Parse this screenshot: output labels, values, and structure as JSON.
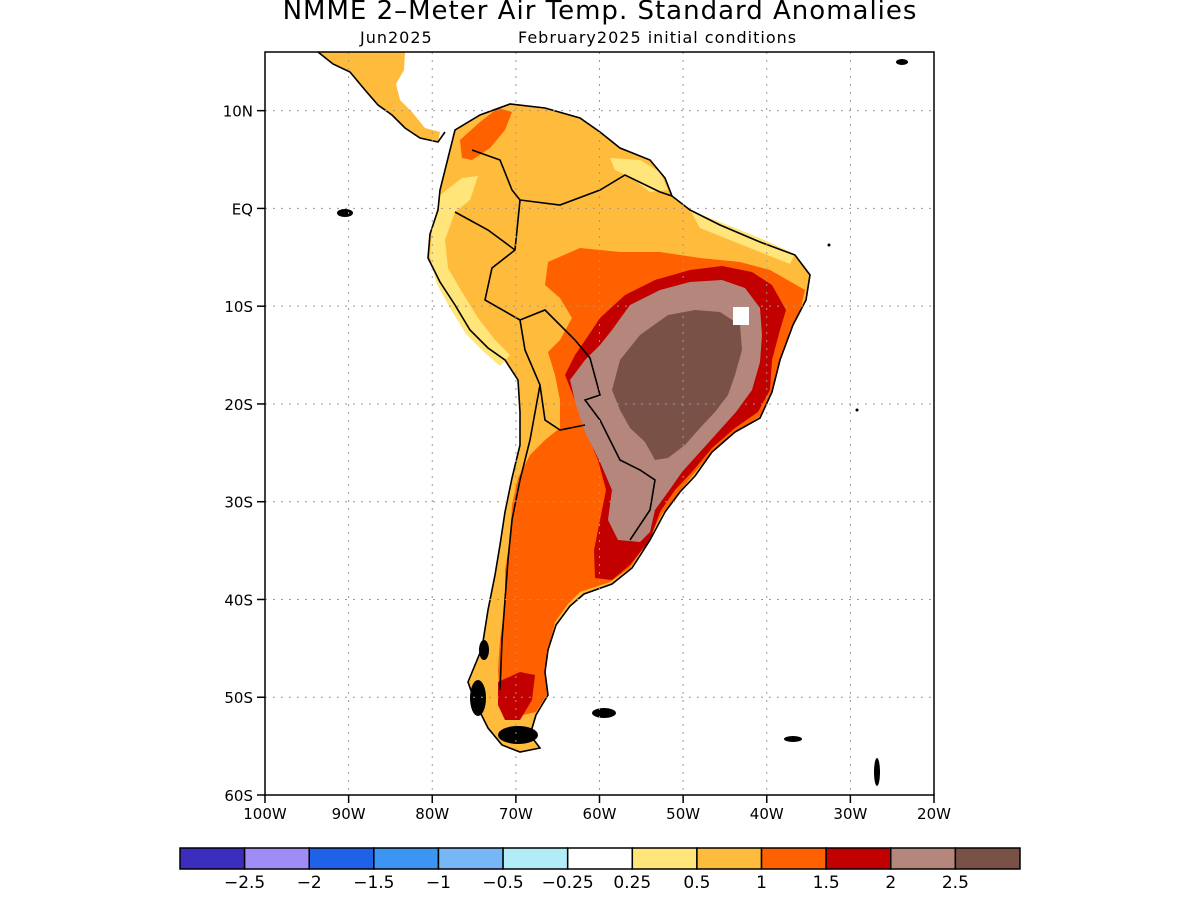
{
  "title": "NMME 2–Meter Air Temp. Standard Anomalies",
  "subtitle_left": "Jun2025",
  "subtitle_right": "February2025 initial conditions",
  "lat_ticks": [
    {
      "value": 10,
      "label": "10N"
    },
    {
      "value": 0,
      "label": "EQ"
    },
    {
      "value": -10,
      "label": "10S"
    },
    {
      "value": -20,
      "label": "20S"
    },
    {
      "value": -30,
      "label": "30S"
    },
    {
      "value": -40,
      "label": "40S"
    },
    {
      "value": -50,
      "label": "50S"
    },
    {
      "value": -60,
      "label": "60S"
    }
  ],
  "lon_ticks": [
    {
      "value": -100,
      "label": "100W"
    },
    {
      "value": -90,
      "label": "90W"
    },
    {
      "value": -80,
      "label": "80W"
    },
    {
      "value": -70,
      "label": "70W"
    },
    {
      "value": -60,
      "label": "60W"
    },
    {
      "value": -50,
      "label": "50W"
    },
    {
      "value": -40,
      "label": "40W"
    },
    {
      "value": -30,
      "label": "30W"
    },
    {
      "value": -20,
      "label": "20W"
    }
  ],
  "map_extent": {
    "lon_min": -100,
    "lon_max": -20,
    "lat_min": -60,
    "lat_max": 16
  },
  "colorbar": {
    "colors": [
      "#3b2dbd",
      "#9f8df5",
      "#1f62e8",
      "#3d95f3",
      "#77b6f7",
      "#b1ecf7",
      "#ffffff",
      "#ffe57a",
      "#ffbb3c",
      "#ff6000",
      "#c30000",
      "#b5877c",
      "#7a5146"
    ],
    "labels": [
      "−2.5",
      "−2",
      "−1.5",
      "−1",
      "−0.5",
      "−0.25",
      "0.25",
      "0.5",
      "1",
      "1.5",
      "2",
      "2.5"
    ]
  },
  "colors": {
    "pos05": "#ffe57a",
    "pos1": "#ffbb3c",
    "pos15": "#ff6000",
    "pos2": "#c30000",
    "pos25": "#b5877c",
    "pos3": "#7a5146",
    "neutral": "#ffffff"
  }
}
